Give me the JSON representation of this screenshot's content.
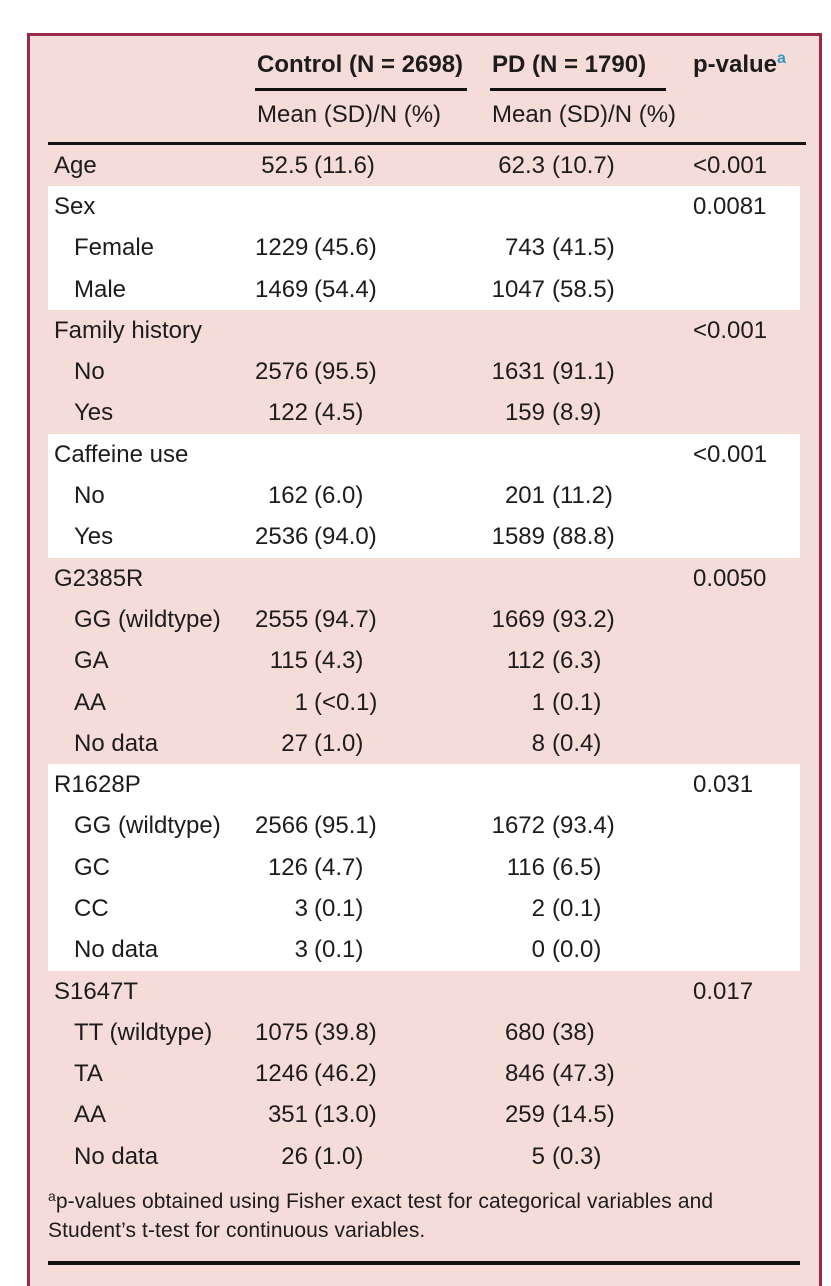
{
  "colors": {
    "panel_background": "#f6dcd9",
    "panel_border": "#98294a",
    "white_band": "#ffffff",
    "rule": "#111111",
    "text": "#1c1c1c",
    "superscript_accent": "#3399c3"
  },
  "table": {
    "header": {
      "control": "Control (N = 2698)",
      "pd": "PD (N = 1790)",
      "pvalue": "p-value",
      "pvalue_sup": "a",
      "subheader": "Mean (SD)/N (%)"
    },
    "sections": [
      {
        "id": "age",
        "tint": "pink",
        "rows": [
          {
            "label": "Age",
            "indent": false,
            "control_n": "52.5",
            "control_pct": "(11.6)",
            "pd_n": "62.3",
            "pd_pct": "(10.7)",
            "p": "<0.001"
          }
        ]
      },
      {
        "id": "sex",
        "tint": "white",
        "rows": [
          {
            "label": "Sex",
            "indent": false,
            "control_n": "",
            "control_pct": "",
            "pd_n": "",
            "pd_pct": "",
            "p": "0.0081"
          },
          {
            "label": "Female",
            "indent": true,
            "control_n": "1229",
            "control_pct": "(45.6)",
            "pd_n": "743",
            "pd_pct": "(41.5)",
            "p": ""
          },
          {
            "label": "Male",
            "indent": true,
            "control_n": "1469",
            "control_pct": "(54.4)",
            "pd_n": "1047",
            "pd_pct": "(58.5)",
            "p": ""
          }
        ]
      },
      {
        "id": "family-history",
        "tint": "pink",
        "rows": [
          {
            "label": "Family history",
            "indent": false,
            "control_n": "",
            "control_pct": "",
            "pd_n": "",
            "pd_pct": "",
            "p": "<0.001"
          },
          {
            "label": "No",
            "indent": true,
            "control_n": "2576",
            "control_pct": "(95.5)",
            "pd_n": "1631",
            "pd_pct": "(91.1)",
            "p": ""
          },
          {
            "label": "Yes",
            "indent": true,
            "control_n": "122",
            "control_pct": "(4.5)",
            "pd_n": "159",
            "pd_pct": "(8.9)",
            "p": ""
          }
        ]
      },
      {
        "id": "caffeine-use",
        "tint": "white",
        "rows": [
          {
            "label": "Caffeine use",
            "indent": false,
            "control_n": "",
            "control_pct": "",
            "pd_n": "",
            "pd_pct": "",
            "p": "<0.001"
          },
          {
            "label": "No",
            "indent": true,
            "control_n": "162",
            "control_pct": "(6.0)",
            "pd_n": "201",
            "pd_pct": "(11.2)",
            "p": ""
          },
          {
            "label": "Yes",
            "indent": true,
            "control_n": "2536",
            "control_pct": "(94.0)",
            "pd_n": "1589",
            "pd_pct": "(88.8)",
            "p": ""
          }
        ]
      },
      {
        "id": "g2385r",
        "tint": "pink",
        "rows": [
          {
            "label": "G2385R",
            "indent": false,
            "control_n": "",
            "control_pct": "",
            "pd_n": "",
            "pd_pct": "",
            "p": "0.0050"
          },
          {
            "label": "GG (wildtype)",
            "indent": true,
            "control_n": "2555",
            "control_pct": "(94.7)",
            "pd_n": "1669",
            "pd_pct": "(93.2)",
            "p": ""
          },
          {
            "label": "GA",
            "indent": true,
            "control_n": "115",
            "control_pct": "(4.3)",
            "pd_n": "112",
            "pd_pct": "(6.3)",
            "p": ""
          },
          {
            "label": "AA",
            "indent": true,
            "control_n": "1",
            "control_pct": "(<0.1)",
            "pd_n": "1",
            "pd_pct": "(0.1)",
            "p": ""
          },
          {
            "label": "No data",
            "indent": true,
            "control_n": "27",
            "control_pct": "(1.0)",
            "pd_n": "8",
            "pd_pct": "(0.4)",
            "p": ""
          }
        ]
      },
      {
        "id": "r1628p",
        "tint": "white",
        "rows": [
          {
            "label": "R1628P",
            "indent": false,
            "control_n": "",
            "control_pct": "",
            "pd_n": "",
            "pd_pct": "",
            "p": "0.031"
          },
          {
            "label": "GG (wildtype)",
            "indent": true,
            "control_n": "2566",
            "control_pct": "(95.1)",
            "pd_n": "1672",
            "pd_pct": "(93.4)",
            "p": ""
          },
          {
            "label": "GC",
            "indent": true,
            "control_n": "126",
            "control_pct": "(4.7)",
            "pd_n": "116",
            "pd_pct": "(6.5)",
            "p": ""
          },
          {
            "label": "CC",
            "indent": true,
            "control_n": "3",
            "control_pct": "(0.1)",
            "pd_n": "2",
            "pd_pct": "(0.1)",
            "p": ""
          },
          {
            "label": "No data",
            "indent": true,
            "control_n": "3",
            "control_pct": "(0.1)",
            "pd_n": "0",
            "pd_pct": "(0.0)",
            "p": ""
          }
        ]
      },
      {
        "id": "s1647t",
        "tint": "pink",
        "rows": [
          {
            "label": "S1647T",
            "indent": false,
            "control_n": "",
            "control_pct": "",
            "pd_n": "",
            "pd_pct": "",
            "p": "0.017"
          },
          {
            "label": "TT (wildtype)",
            "indent": true,
            "control_n": "1075",
            "control_pct": "(39.8)",
            "pd_n": "680",
            "pd_pct": "(38)",
            "p": ""
          },
          {
            "label": "TA",
            "indent": true,
            "control_n": "1246",
            "control_pct": "(46.2)",
            "pd_n": "846",
            "pd_pct": "(47.3)",
            "p": ""
          },
          {
            "label": "AA",
            "indent": true,
            "control_n": "351",
            "control_pct": "(13.0)",
            "pd_n": "259",
            "pd_pct": "(14.5)",
            "p": ""
          },
          {
            "label": "No data",
            "indent": true,
            "control_n": "26",
            "control_pct": "(1.0)",
            "pd_n": "5",
            "pd_pct": "(0.3)",
            "p": ""
          }
        ]
      }
    ],
    "footnote": {
      "marker": "a",
      "text": "p-values obtained using Fisher exact test for categorical variables and Student’s t-test for continuous variables."
    }
  }
}
